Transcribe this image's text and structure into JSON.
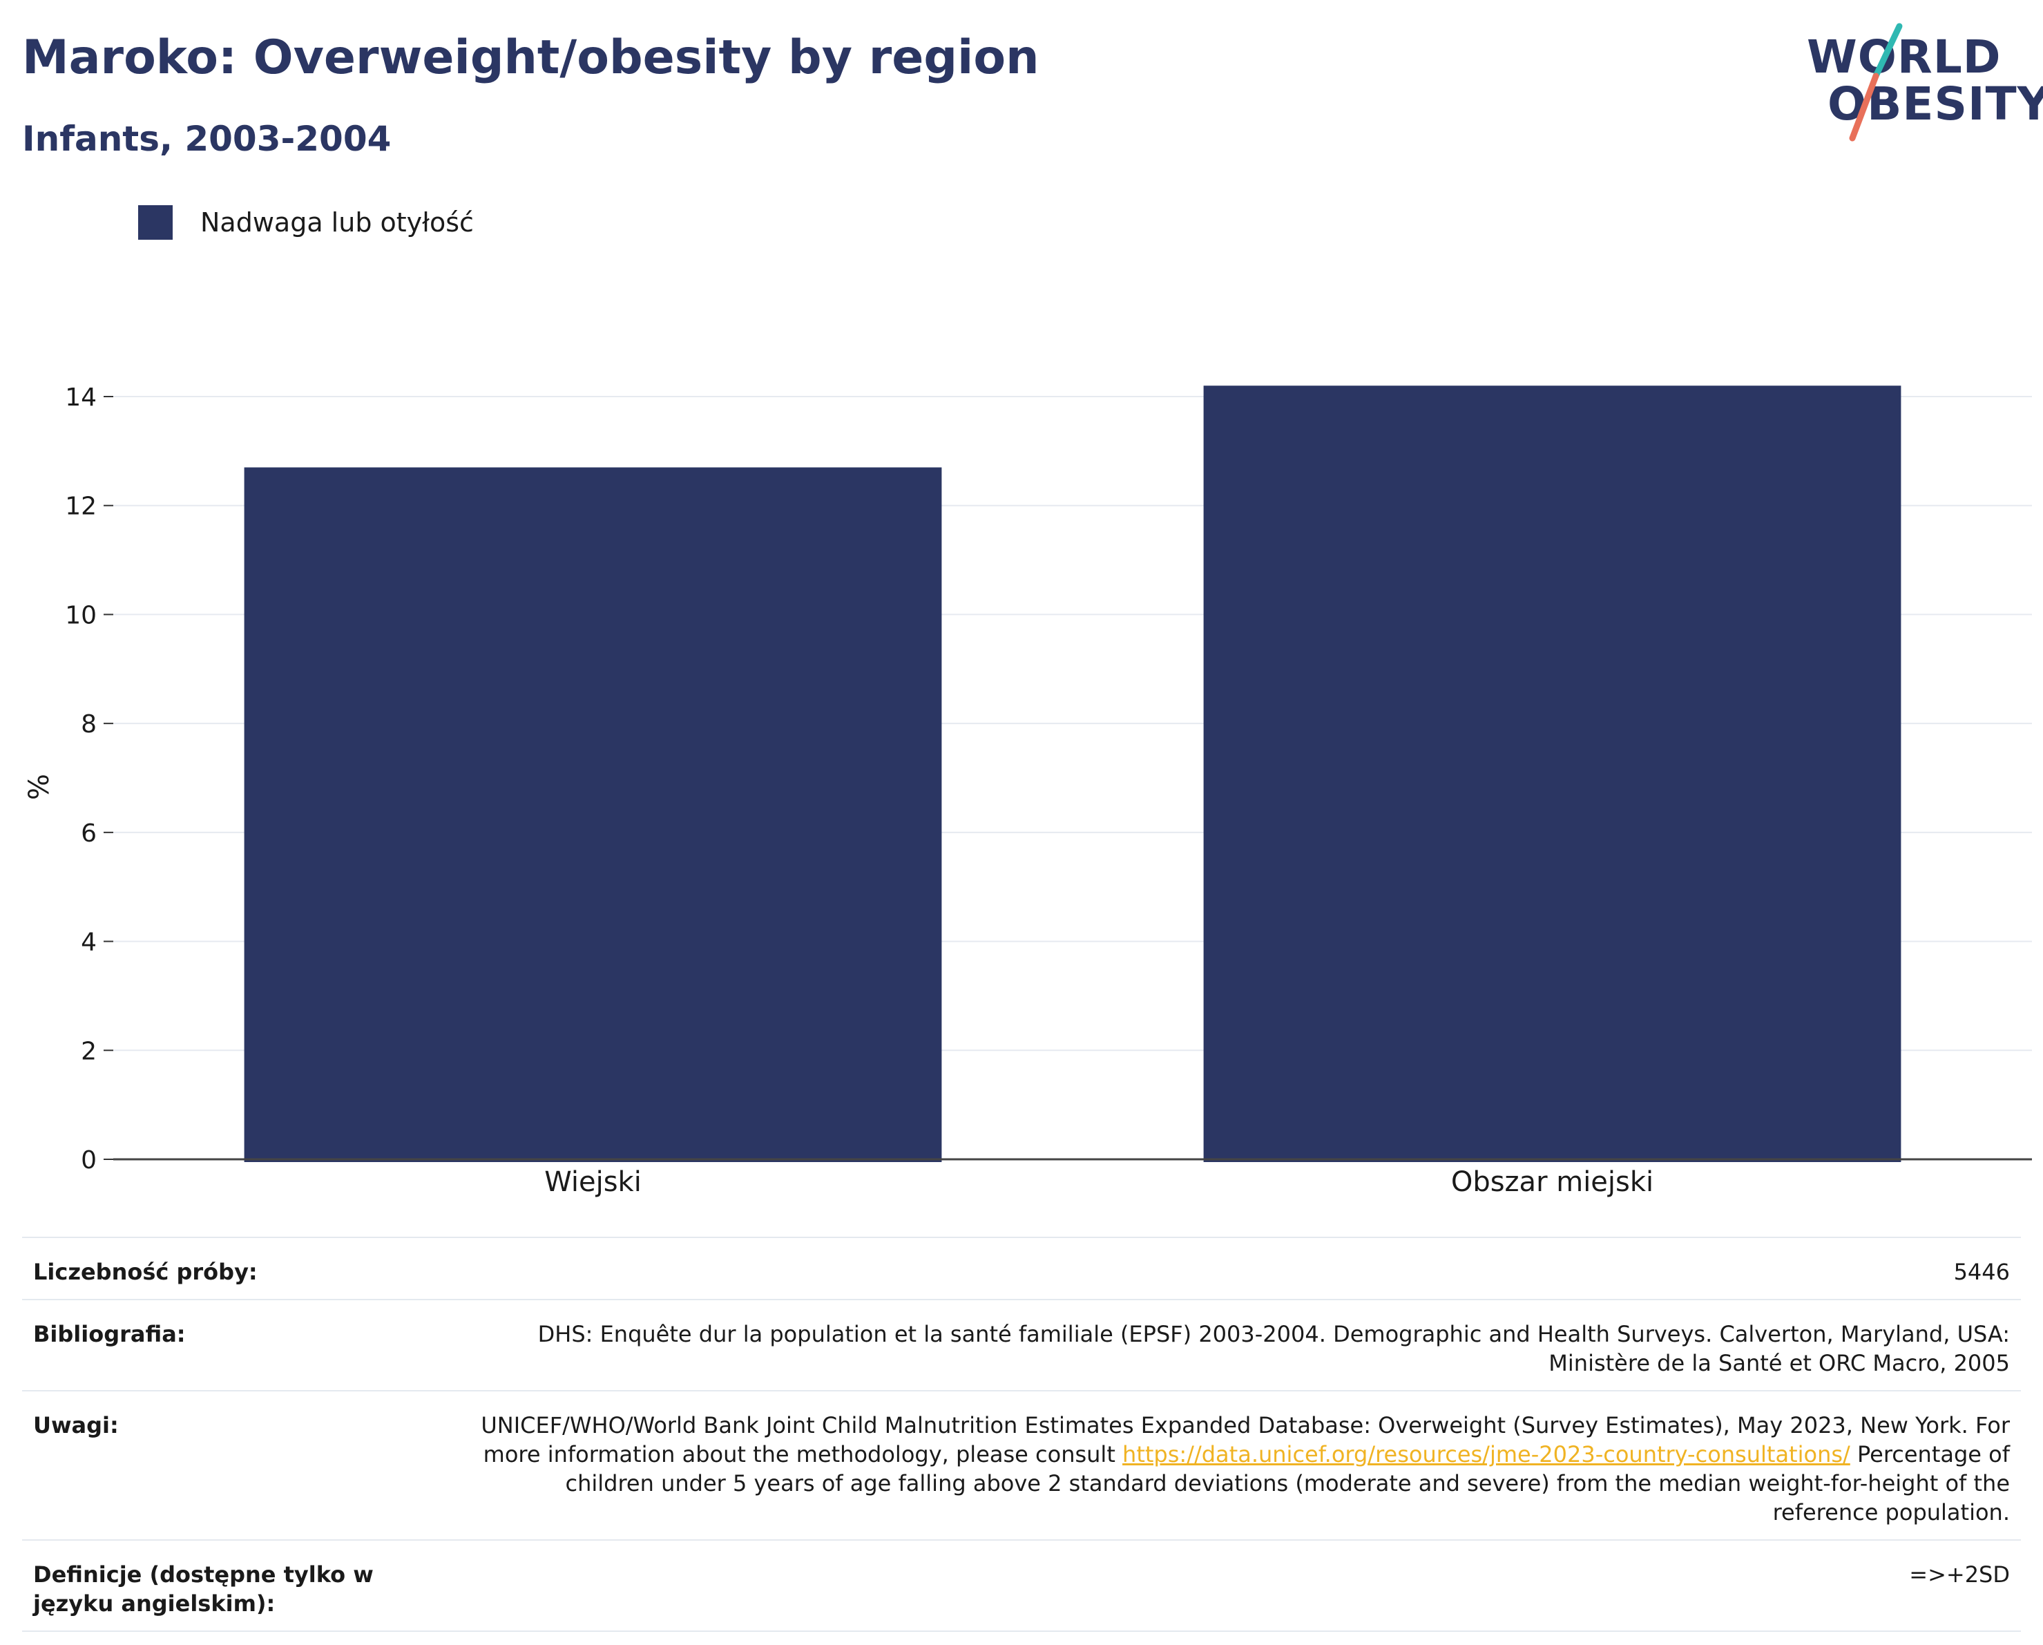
{
  "header": {
    "title": "Maroko: Overweight/obesity by region",
    "subtitle": "Infants, 2003-2004"
  },
  "logo": {
    "line1": "WORLD",
    "line2": "OBESITY",
    "slash_colors": [
      "#2fb8b2",
      "#e8705a"
    ]
  },
  "legend": {
    "label": "Nadwaga lub otyłość",
    "color": "#2b3663"
  },
  "chart_data": {
    "type": "bar",
    "categories": [
      "Wiejski",
      "Obszar miejski"
    ],
    "series": [
      {
        "name": "Nadwaga lub otyłość",
        "values": [
          12.7,
          14.2
        ],
        "color": "#2b3663"
      }
    ],
    "ylabel": "%",
    "xlabel": "",
    "ylim": [
      0,
      15
    ],
    "yticks": [
      0,
      2,
      4,
      6,
      8,
      10,
      12,
      14
    ],
    "grid": true
  },
  "meta": {
    "rows": [
      {
        "key": "Liczebność próby:",
        "value": "5446"
      },
      {
        "key": "Bibliografia:",
        "value": "DHS: Enquête dur la population et la santé familiale (EPSF) 2003-2004. Demographic and Health Surveys. Calverton, Maryland, USA: Ministère de la Santé et ORC Macro, 2005"
      },
      {
        "key": "Uwagi:",
        "value_before": "UNICEF/WHO/World Bank Joint Child Malnutrition Estimates Expanded Database: Overweight (Survey Estimates), May 2023, New York. For more information about the methodology, please consult ",
        "link": "https://data.unicef.org/resources/jme-2023-country-consultations/",
        "value_after": " Percentage of children under 5 years of age falling above 2 standard deviations (moderate and severe) from the median weight-for-height of the reference population."
      },
      {
        "key": "Definicje (dostępne tylko w języku angielskim):",
        "value": "=>+2SD"
      }
    ]
  }
}
